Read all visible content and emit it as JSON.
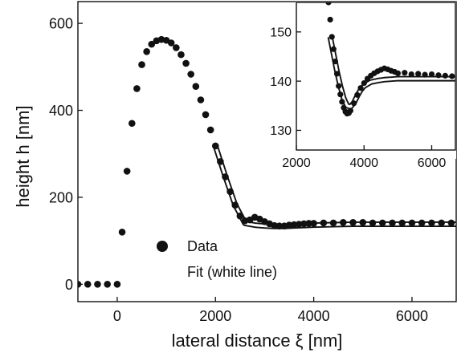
{
  "chart_data": [
    {
      "type": "scatter",
      "title": "",
      "xlabel": "lateral distance ξ [nm]",
      "ylabel": "height h [nm]",
      "xlim": [
        -800,
        6900
      ],
      "ylim": [
        -40,
        650
      ],
      "x_ticks": [
        0,
        2000,
        4000,
        6000
      ],
      "y_ticks": [
        0,
        200,
        400,
        600
      ],
      "grid": false,
      "legend": {
        "placement": "bottom-center",
        "entries": [
          {
            "label": "Data",
            "marker": "filled-circle"
          },
          {
            "label": "Fit (white line)",
            "marker": "none"
          }
        ]
      },
      "series": [
        {
          "name": "Data",
          "style": "black-filled-circles",
          "x": [
            -800,
            -600,
            -400,
            -200,
            0,
            100,
            200,
            300,
            400,
            500,
            600,
            700,
            800,
            900,
            1000,
            1100,
            1200,
            1300,
            1400,
            1500,
            1600,
            1700,
            1800,
            1900,
            2000,
            2100,
            2200,
            2300,
            2400,
            2500,
            2600,
            2700,
            2800,
            2900,
            3000,
            3100,
            3200,
            3300,
            3400,
            3500,
            3600,
            3700,
            3800,
            3900,
            4000,
            4200,
            4400,
            4600,
            4800,
            5000,
            5200,
            5400,
            5600,
            5800,
            6000,
            6200,
            6400,
            6600,
            6800
          ],
          "y": [
            0,
            0,
            0,
            0,
            0,
            120,
            260,
            370,
            450,
            505,
            535,
            552,
            560,
            563,
            561,
            555,
            544,
            528,
            508,
            483,
            455,
            424,
            390,
            355,
            318,
            282,
            247,
            213,
            182,
            157,
            146,
            148,
            154,
            150,
            144,
            139,
            135,
            134,
            134,
            136,
            137,
            138,
            139,
            140,
            140,
            141,
            141,
            142,
            142,
            142,
            141,
            141,
            141,
            141,
            141,
            141,
            141,
            141,
            141
          ]
        },
        {
          "name": "Fit (white line)",
          "style": "white-line-black-outline",
          "x": [
            2000,
            2200,
            2400,
            2600,
            2800,
            3000,
            3200,
            3400,
            3600,
            3800,
            4000,
            4400,
            4800,
            5200,
            5600,
            6000,
            6400,
            6900
          ],
          "y": [
            318,
            248,
            183,
            140,
            136,
            134,
            133,
            133,
            134,
            135,
            136,
            137,
            138,
            138,
            138,
            138,
            138,
            138
          ]
        }
      ]
    },
    {
      "type": "scatter",
      "title": "",
      "xlabel": "",
      "ylabel": "",
      "xlim": [
        2000,
        6700
      ],
      "ylim": [
        126,
        156
      ],
      "x_ticks": [
        2000,
        4000,
        6000
      ],
      "y_ticks": [
        130,
        140,
        150
      ],
      "grid": false,
      "series": [
        {
          "name": "Data",
          "style": "black-filled-circles",
          "x": [
            2950,
            3000,
            3050,
            3100,
            3150,
            3200,
            3250,
            3300,
            3350,
            3400,
            3450,
            3500,
            3550,
            3600,
            3700,
            3800,
            3900,
            4000,
            4100,
            4200,
            4300,
            4400,
            4500,
            4600,
            4700,
            4800,
            4900,
            5000,
            5200,
            5400,
            5600,
            5800,
            6000,
            6200,
            6400,
            6600
          ],
          "y": [
            156,
            152.5,
            149,
            146.5,
            144,
            141.5,
            139,
            137.3,
            135.8,
            134.6,
            133.8,
            133.4,
            133.5,
            134,
            135.5,
            137.2,
            138.6,
            139.6,
            140.5,
            141.1,
            141.6,
            142,
            142.3,
            142.6,
            142.4,
            142.1,
            141.9,
            141.6,
            141.7,
            141.4,
            141.5,
            141.3,
            141.4,
            141.2,
            141.1,
            141
          ]
        },
        {
          "name": "Fit (white line)",
          "style": "white-line-black-outline",
          "x": [
            3000,
            3100,
            3200,
            3300,
            3400,
            3500,
            3600,
            3700,
            3800,
            3900,
            4000,
            4200,
            4400,
            4600,
            4800,
            5000,
            5400,
            5800,
            6200,
            6700
          ],
          "y": [
            149,
            145.5,
            142,
            139,
            136.5,
            135,
            134.8,
            135.6,
            137,
            138.2,
            139,
            139.8,
            140.1,
            140.3,
            140.4,
            140.5,
            140.5,
            140.5,
            140.5,
            140.5
          ]
        }
      ]
    }
  ]
}
